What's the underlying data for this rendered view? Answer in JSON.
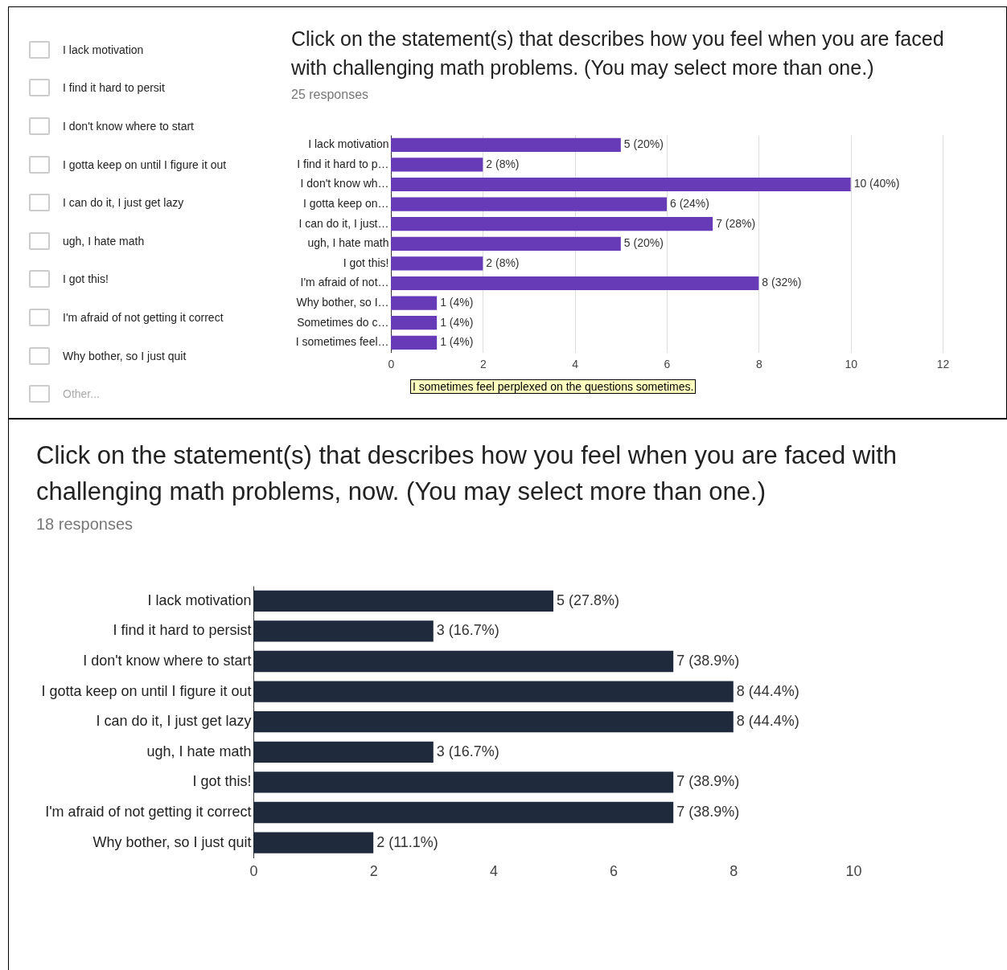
{
  "chart_data": [
    {
      "type": "other",
      "annotations": [
        "I lack motivation",
        "I find it hard to persit",
        "I don't know where to start",
        "I gotta keep on until I figure it out",
        "I can do it, I just get lazy",
        "ugh, I hate math",
        "I got this!",
        "I'm afraid of not getting it correct",
        "Why bother, so I just quit",
        "Other..."
      ]
    },
    {
      "type": "bar",
      "orientation": "horizontal",
      "title": "Click on the statement(s) that describes how you feel when you are faced with challenging math problems. (You may select more than one.)",
      "subtitle": "25 responses",
      "categories": [
        "I lack motivation",
        "I find it hard to p…",
        "I don't know wh…",
        "I gotta keep on…",
        "I can do it, I just…",
        "ugh, I hate math",
        "I got this!",
        "I'm afraid of not…",
        "Why bother, so I…",
        "Sometimes do c…",
        "I sometimes feel…"
      ],
      "values": [
        5,
        2,
        10,
        6,
        7,
        5,
        2,
        8,
        1,
        1,
        1
      ],
      "value_labels": [
        "5 (20%)",
        "2 (8%)",
        "10 (40%)",
        "6 (24%)",
        "7 (28%)",
        "5 (20%)",
        "2 (8%)",
        "8 (32%)",
        "1 (4%)",
        "1 (4%)",
        "1 (4%)"
      ],
      "color": "#673ab7",
      "xlim": [
        0,
        12
      ],
      "xticks": [
        0,
        2,
        4,
        6,
        8,
        10,
        12
      ],
      "grid": "x",
      "annotations": [
        "I sometimes feel perplexed on the questions sometimes."
      ]
    },
    {
      "type": "bar",
      "orientation": "horizontal",
      "title": "Click on the statement(s) that describes how you feel when you are faced with challenging math problems, now. (You may select more than one.)",
      "subtitle": "18 responses",
      "categories": [
        "I lack motivation",
        "I find it hard to persist",
        "I don't know where to start",
        "I gotta keep on until I figure it out",
        "I can do it, I just get lazy",
        "ugh, I hate math",
        "I got this!",
        "I'm afraid of not getting it correct",
        "Why bother, so I just quit"
      ],
      "values": [
        5,
        3,
        7,
        8,
        8,
        3,
        7,
        7,
        2
      ],
      "value_labels": [
        "5 (27.8%)",
        "3 (16.7%)",
        "7 (38.9%)",
        "8 (44.4%)",
        "8 (44.4%)",
        "3 (16.7%)",
        "7 (38.9%)",
        "7 (38.9%)",
        "2 (11.1%)"
      ],
      "color": "#1f2b3d",
      "xlim": [
        0,
        10
      ],
      "xticks": [
        0,
        2,
        4,
        6,
        8,
        10
      ]
    }
  ]
}
